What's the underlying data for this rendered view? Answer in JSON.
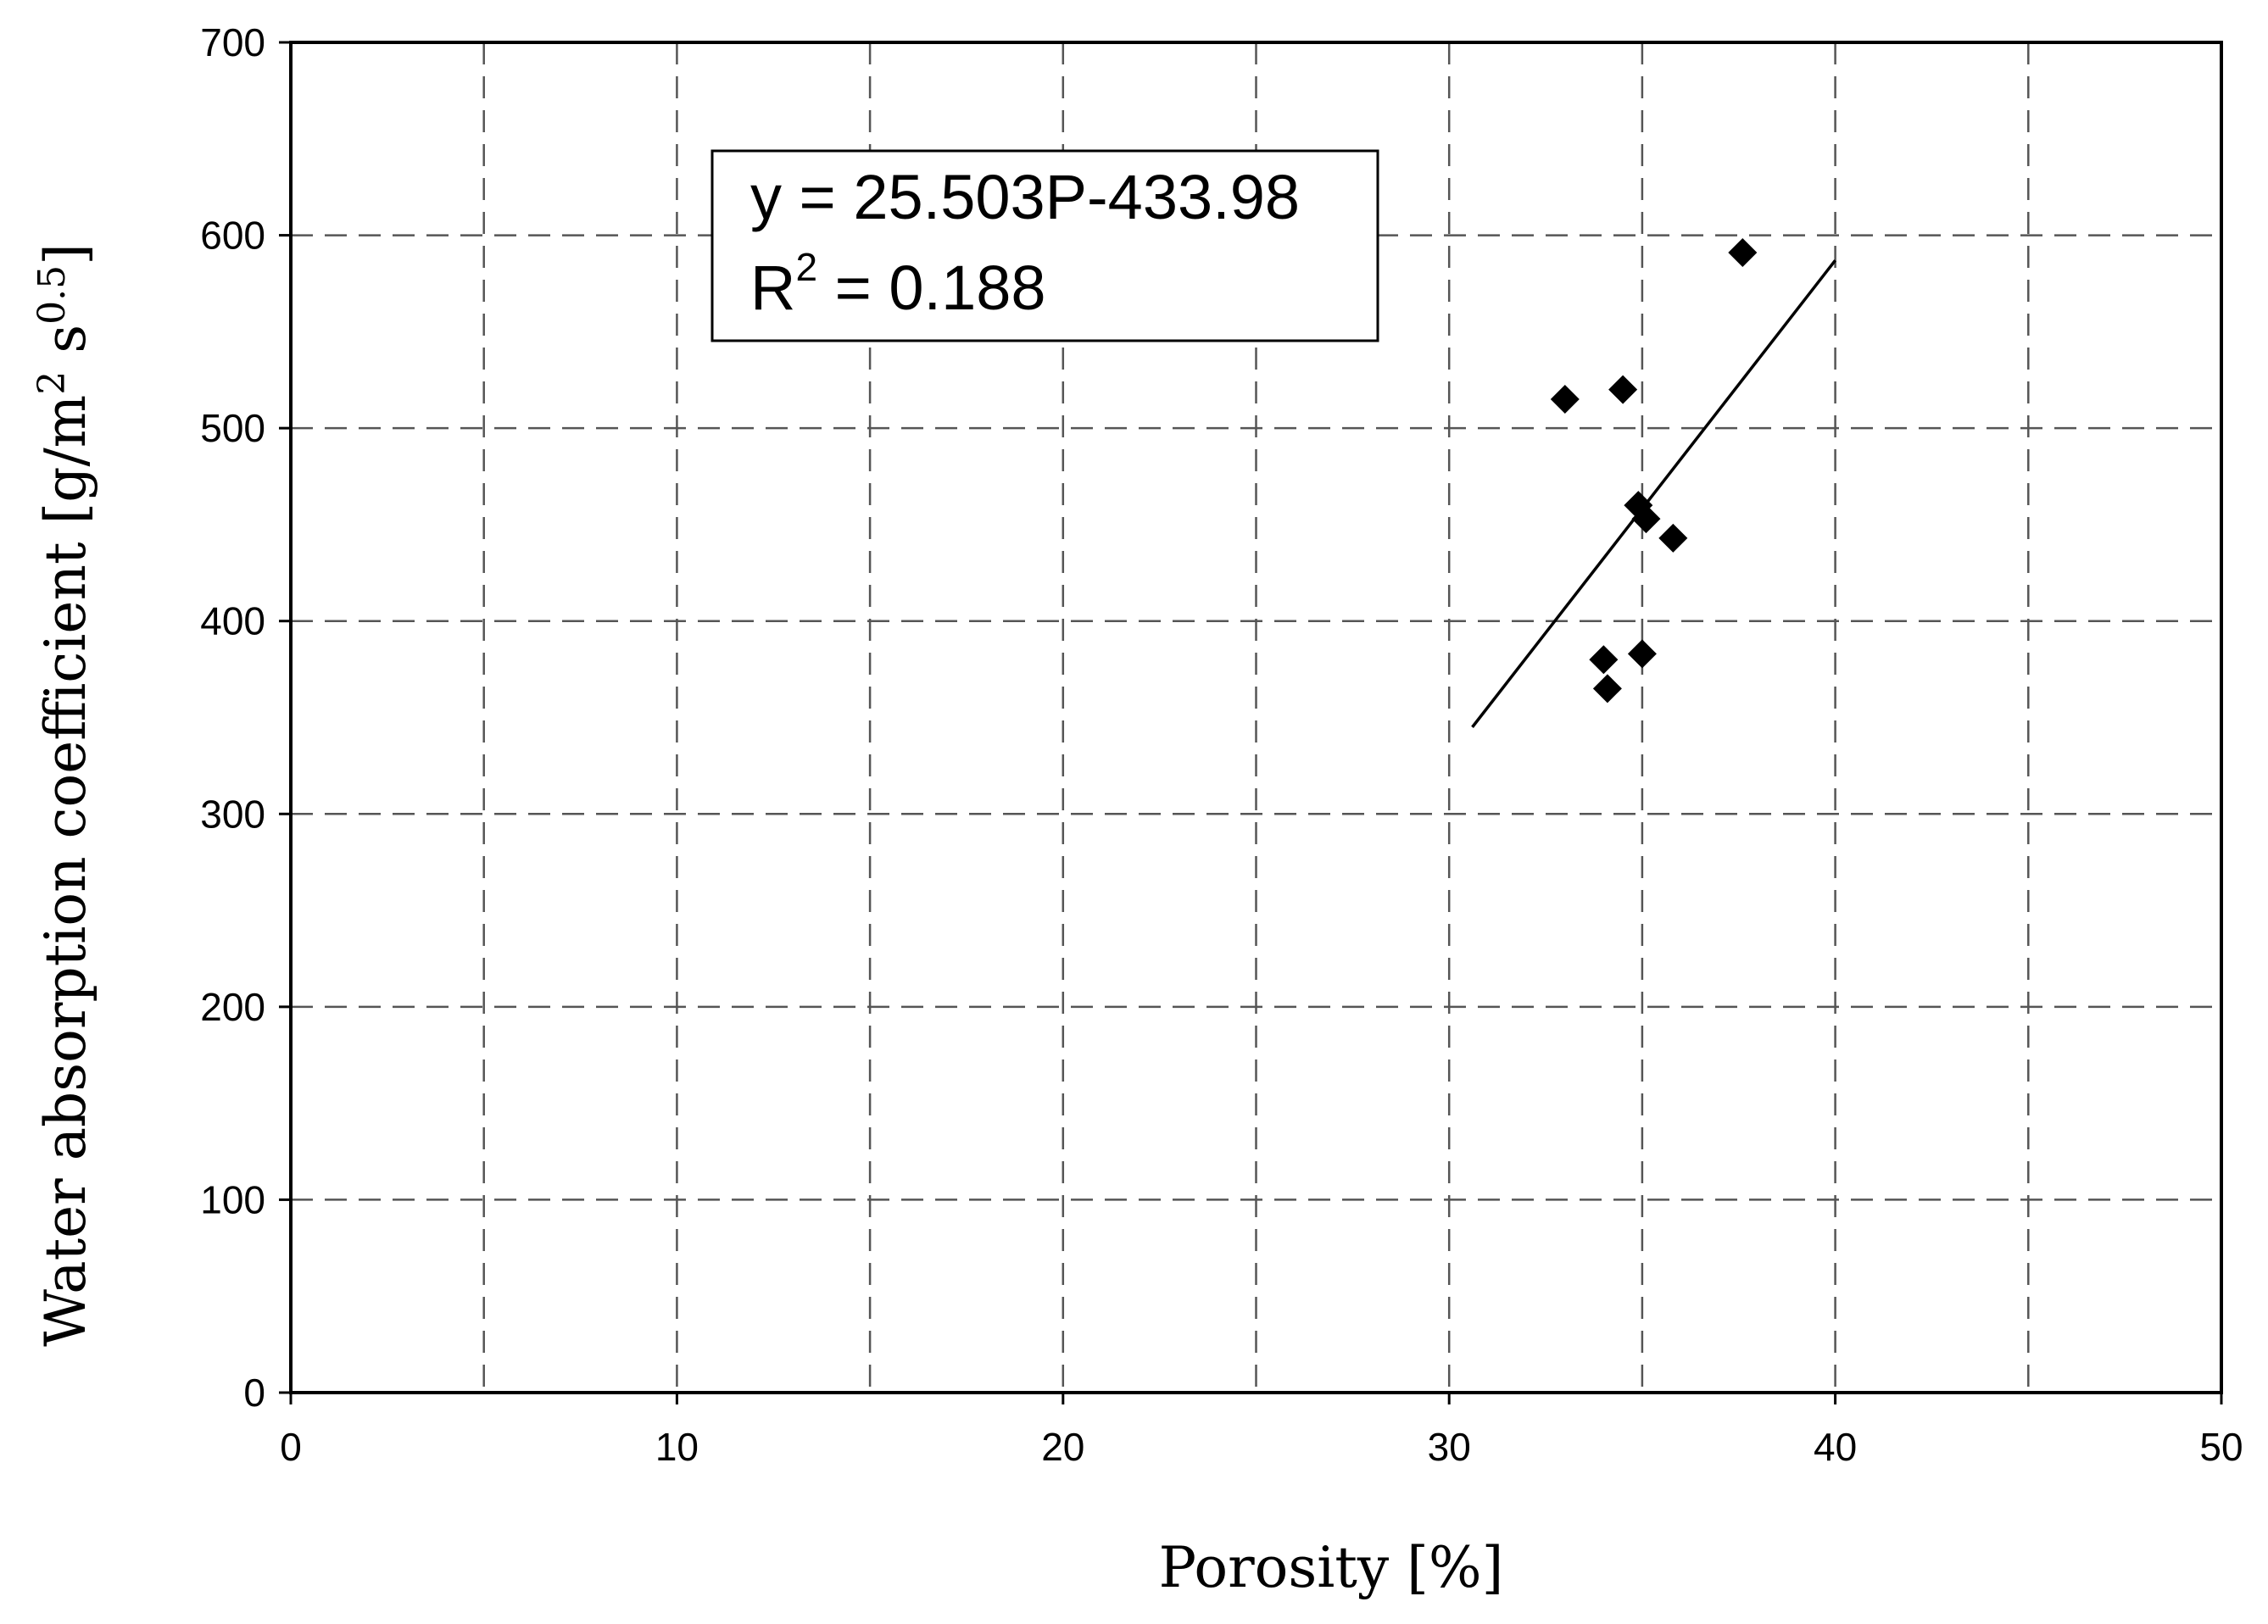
{
  "chart_data": {
    "type": "scatter",
    "title": "",
    "xlabel": "Porosity [%]",
    "ylabel": {
      "prefix": "Water absorption coefficient [g/m",
      "sup1": "2",
      "mid": " s",
      "sup2": "0.5",
      "suffix": "]"
    },
    "xlim": [
      0,
      50
    ],
    "ylim": [
      0,
      700
    ],
    "xticks": [
      0,
      10,
      20,
      30,
      40,
      50
    ],
    "yticks": [
      0,
      100,
      200,
      300,
      400,
      500,
      600,
      700
    ],
    "x_gridlines": [
      5,
      10,
      15,
      20,
      25,
      30,
      35,
      40,
      45
    ],
    "y_gridlines": [
      100,
      200,
      300,
      400,
      500,
      600
    ],
    "grid": true,
    "series": [
      {
        "marker": "diamond",
        "color": "#000000",
        "points": [
          {
            "x": 33.0,
            "y": 515
          },
          {
            "x": 34.5,
            "y": 520
          },
          {
            "x": 34.9,
            "y": 460
          },
          {
            "x": 35.1,
            "y": 453
          },
          {
            "x": 35.8,
            "y": 443
          },
          {
            "x": 34.0,
            "y": 380
          },
          {
            "x": 34.1,
            "y": 365
          },
          {
            "x": 35.0,
            "y": 383
          },
          {
            "x": 37.6,
            "y": 591
          }
        ]
      }
    ],
    "trendline": {
      "x_start": 30.6,
      "x_end": 40.0,
      "y_start": 345,
      "y_end": 587
    },
    "annotation": {
      "equation": "y = 25.503P-433.98",
      "r2_label": "R",
      "r2_sup": "2",
      "r2_value": " = 0.188"
    }
  }
}
